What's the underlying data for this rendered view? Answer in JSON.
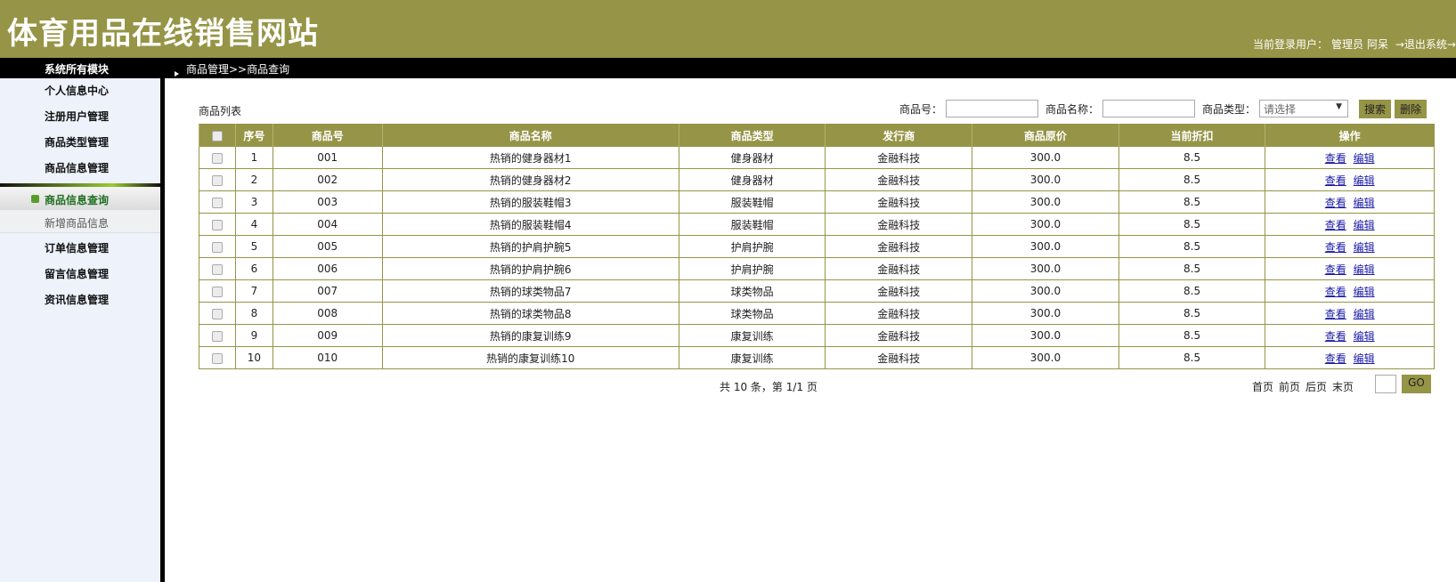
{
  "header": {
    "title": "体育用品在线销售网站",
    "user_label": "当前登录用户：",
    "user_role": "管理员",
    "user_name": "阿呆",
    "logout": "→退出系统→"
  },
  "bar": {
    "module_title": "系统所有模块",
    "breadcrumb": "商品管理>>商品查询"
  },
  "sidebar": {
    "items": [
      "个人信息中心",
      "注册用户管理",
      "商品类型管理",
      "商品信息管理"
    ],
    "active": "商品信息查询",
    "sub": "新增商品信息",
    "items2": [
      "订单信息管理",
      "留言信息管理",
      "资讯信息管理"
    ]
  },
  "main": {
    "list_label": "商品列表",
    "search": {
      "id_label": "商品号：",
      "name_label": "商品名称：",
      "type_label": "商品类型：",
      "type_value": "请选择",
      "search_btn": "搜索",
      "delete_btn": "删除"
    },
    "columns": [
      "序号",
      "商品号",
      "商品名称",
      "商品类型",
      "发行商",
      "商品原价",
      "当前折扣",
      "操作"
    ],
    "rows": [
      [
        "1",
        "001",
        "热销的健身器材1",
        "健身器材",
        "金融科技",
        "300.0",
        "8.5"
      ],
      [
        "2",
        "002",
        "热销的健身器材2",
        "健身器材",
        "金融科技",
        "300.0",
        "8.5"
      ],
      [
        "3",
        "003",
        "热销的服装鞋帽3",
        "服装鞋帽",
        "金融科技",
        "300.0",
        "8.5"
      ],
      [
        "4",
        "004",
        "热销的服装鞋帽4",
        "服装鞋帽",
        "金融科技",
        "300.0",
        "8.5"
      ],
      [
        "5",
        "005",
        "热销的护肩护腕5",
        "护肩护腕",
        "金融科技",
        "300.0",
        "8.5"
      ],
      [
        "6",
        "006",
        "热销的护肩护腕6",
        "护肩护腕",
        "金融科技",
        "300.0",
        "8.5"
      ],
      [
        "7",
        "007",
        "热销的球类物品7",
        "球类物品",
        "金融科技",
        "300.0",
        "8.5"
      ],
      [
        "8",
        "008",
        "热销的球类物品8",
        "球类物品",
        "金融科技",
        "300.0",
        "8.5"
      ],
      [
        "9",
        "009",
        "热销的康复训练9",
        "康复训练",
        "金融科技",
        "300.0",
        "8.5"
      ],
      [
        "10",
        "010",
        "热销的康复训练10",
        "康复训练",
        "金融科技",
        "300.0",
        "8.5"
      ]
    ],
    "actions": [
      "查看",
      "编辑"
    ],
    "pagination": {
      "summary": "共 10 条，第 1/1 页",
      "first": "首页",
      "prev": "前页",
      "next": "后页",
      "last": "末页",
      "go": "GO"
    }
  },
  "colors": {
    "accent": "#969446",
    "link": "#1a1aa6"
  }
}
